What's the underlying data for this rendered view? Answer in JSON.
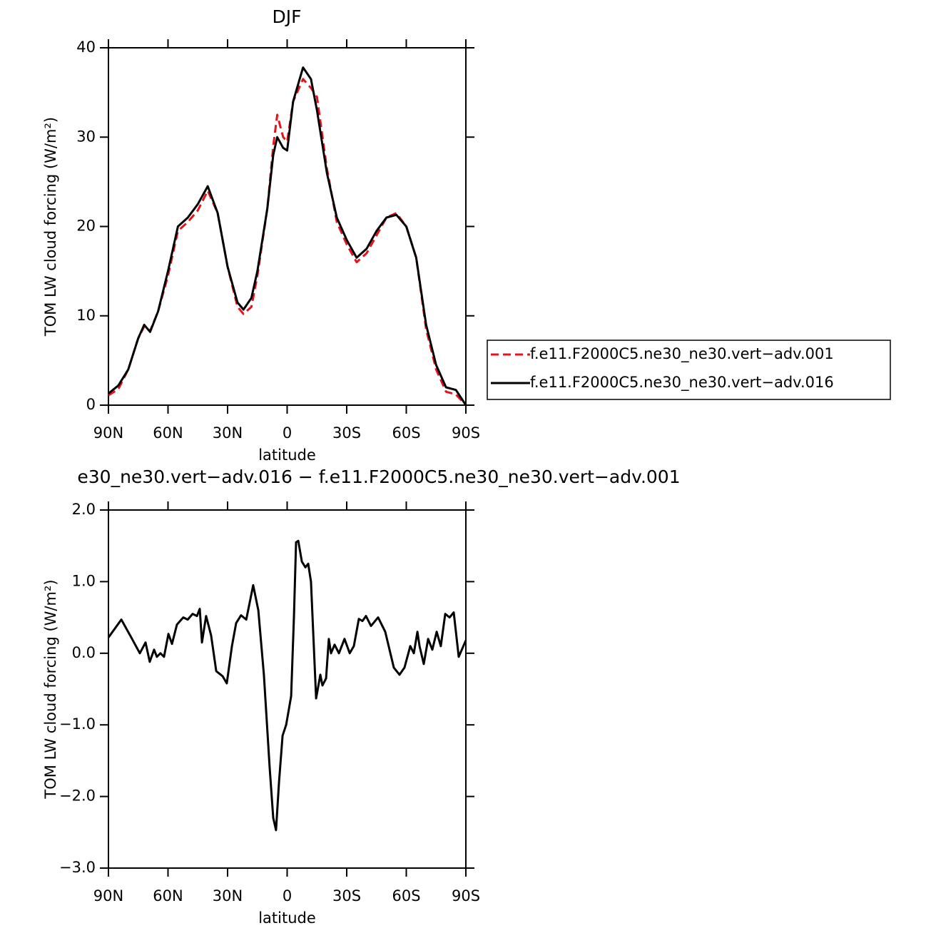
{
  "chart_data": [
    {
      "type": "line",
      "title": "DJF",
      "xlabel": "latitude",
      "ylabel": "TOM LW cloud forcing (W/m²)",
      "x": [
        90,
        85,
        80,
        75,
        72,
        69,
        65,
        60,
        55,
        50,
        45,
        40,
        35,
        30,
        25,
        22,
        18,
        15,
        10,
        7,
        5,
        2,
        0,
        -3,
        -8,
        -12,
        -15,
        -20,
        -25,
        -30,
        -35,
        -40,
        -45,
        -50,
        -55,
        -60,
        -65,
        -70,
        -75,
        -80,
        -85,
        -90
      ],
      "series": [
        {
          "name": "f.e11.F2000C5.ne30_ne30.vert−adv.001",
          "color": "#e8121a",
          "dash": true,
          "values": [
            1.1,
            1.8,
            4,
            7.5,
            8.8,
            8.3,
            10.5,
            14.5,
            19.5,
            20.5,
            21.8,
            24,
            21.5,
            15.5,
            11,
            10.2,
            11,
            14.5,
            22,
            29,
            32.5,
            30,
            29.5,
            34,
            36.5,
            35.5,
            34.5,
            26.5,
            20.5,
            18,
            16,
            17,
            19,
            21,
            21.5,
            20,
            16.5,
            8.5,
            4,
            1.5,
            1.2,
            0
          ]
        },
        {
          "name": "f.e11.F2000C5.ne30_ne30.vert−adv.016",
          "color": "#000000",
          "dash": false,
          "values": [
            1.3,
            2.2,
            4,
            7.5,
            9,
            8.2,
            10.5,
            15,
            20,
            21,
            22.5,
            24.5,
            21.5,
            15.5,
            11.5,
            10.7,
            12,
            15,
            22,
            28,
            30,
            28.8,
            28.5,
            34,
            37.8,
            36.5,
            33,
            26,
            21,
            18.5,
            16.5,
            17.5,
            19.5,
            21,
            21.3,
            20,
            16.5,
            9,
            4.5,
            2,
            1.7,
            0
          ]
        }
      ],
      "xlim": [
        90,
        -90
      ],
      "ylim": [
        0,
        40
      ],
      "xticks": [
        {
          "value": 90,
          "label": "90N"
        },
        {
          "value": 60,
          "label": "60N"
        },
        {
          "value": 30,
          "label": "30N"
        },
        0,
        {
          "value": -30,
          "label": "30S"
        },
        {
          "value": -60,
          "label": "60S"
        },
        {
          "value": -90,
          "label": "90S"
        }
      ],
      "yticks": [
        0,
        10,
        20,
        30,
        40
      ],
      "legend": "right"
    },
    {
      "type": "line",
      "title": "e30_ne30.vert−adv.016 − f.e11.F2000C5.ne30_ne30.vert−adv.001",
      "xlabel": "latitude",
      "ylabel": "TOM LW cloud forcing (W/m²)",
      "x": [
        90,
        83.5,
        78.1,
        74.2,
        71.3,
        69.2,
        67,
        65.6,
        63.8,
        62,
        59.8,
        58,
        55.5,
        52.3,
        50.1,
        47.6,
        45.4,
        44,
        42.9,
        40.8,
        38.3,
        35.7,
        32.5,
        30.4,
        27.8,
        25.7,
        23.2,
        20.6,
        17.1,
        14.5,
        11.7,
        8.8,
        7,
        5.6,
        4.1,
        2.3,
        0.5,
        -2,
        -3.4,
        -4.5,
        -5.6,
        -7.4,
        -9.2,
        -10.6,
        -12,
        -14.6,
        -16.7,
        -17.8,
        -19.6,
        -21,
        -22.1,
        -23.9,
        -26.1,
        -28.9,
        -31.5,
        -33.6,
        -36.1,
        -37.9,
        -39.7,
        -42.2,
        -45.8,
        -49.4,
        -53.7,
        -56.6,
        -59.1,
        -62,
        -63.8,
        -65.6,
        -66.7,
        -68.8,
        -71,
        -73.1,
        -75.3,
        -77.4,
        -79.6,
        -81.8,
        -83.9,
        -86.4,
        -90
      ],
      "values": [
        0.22,
        0.47,
        0.2,
        0,
        0.15,
        -0.12,
        0.05,
        -0.05,
        0,
        -0.05,
        0.27,
        0.13,
        0.4,
        0.5,
        0.47,
        0.55,
        0.52,
        0.62,
        0.15,
        0.52,
        0.25,
        -0.25,
        -0.32,
        -0.42,
        0.1,
        0.42,
        0.53,
        0.47,
        0.95,
        0.6,
        -0.3,
        -1.6,
        -2.3,
        -2.47,
        -1.8,
        -1.15,
        -1,
        -0.6,
        0.5,
        1.55,
        1.57,
        1.28,
        1.2,
        1.25,
        1,
        -0.63,
        -0.3,
        -0.45,
        -0.35,
        0.2,
        0,
        0.12,
        0,
        0.2,
        0,
        0.1,
        0.48,
        0.45,
        0.52,
        0.38,
        0.5,
        0.3,
        -0.2,
        -0.3,
        -0.2,
        0.1,
        0,
        0.3,
        0.1,
        -0.15,
        0.2,
        0.05,
        0.3,
        0.1,
        0.55,
        0.5,
        0.57,
        -0.05,
        0.18
      ],
      "color": "#000000",
      "xlim": [
        90,
        -90
      ],
      "ylim": [
        -3,
        2
      ],
      "xticks": [
        {
          "value": 90,
          "label": "90N"
        },
        {
          "value": 60,
          "label": "60N"
        },
        {
          "value": 30,
          "label": "30N"
        },
        0,
        {
          "value": -30,
          "label": "30S"
        },
        {
          "value": -60,
          "label": "60S"
        },
        {
          "value": -90,
          "label": "90S"
        }
      ],
      "yticks": [
        {
          "value": -3,
          "label": "−3.0"
        },
        {
          "value": -2,
          "label": "−2.0"
        },
        {
          "value": -1,
          "label": "−1.0"
        },
        {
          "value": 0,
          "label": "0.0"
        },
        {
          "value": 1,
          "label": "1.0"
        },
        {
          "value": 2,
          "label": "2.0"
        }
      ]
    }
  ]
}
